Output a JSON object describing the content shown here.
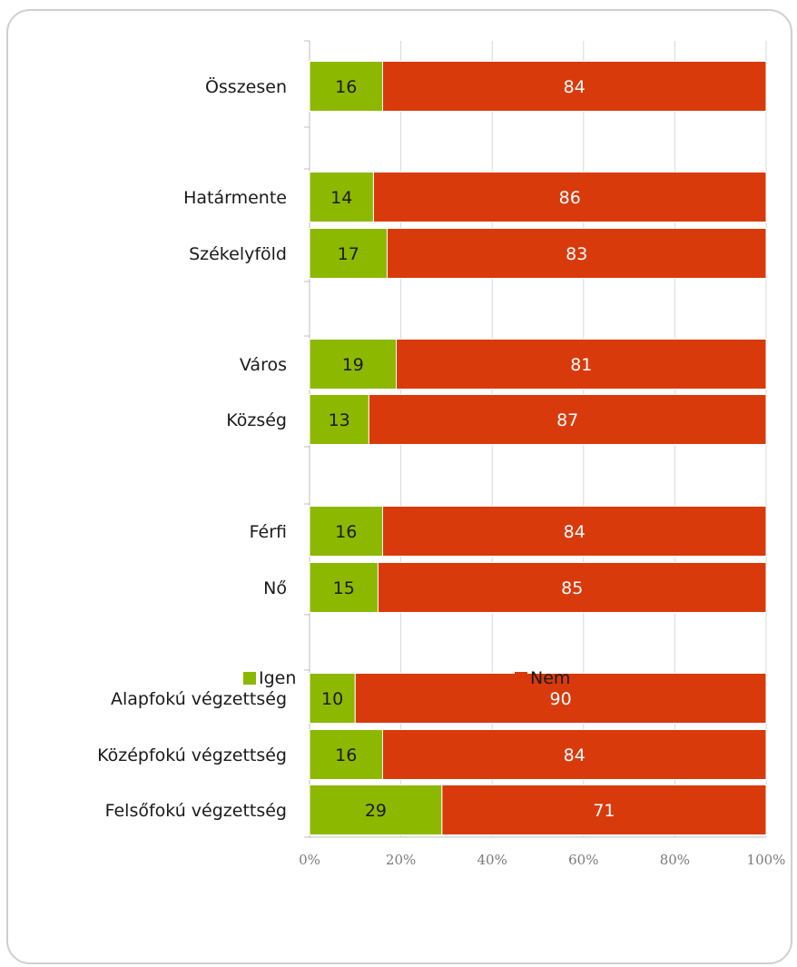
{
  "chart_data": {
    "type": "bar",
    "orientation": "horizontal",
    "stacked": true,
    "categories": [
      "Összesen",
      "Határmente",
      "Székelyföld",
      "Város",
      "Község",
      "Férfi",
      "Nő",
      "Alapfokú végzettség",
      "Középfokú végzettség",
      "Felsőfokú végzettség"
    ],
    "series": [
      {
        "name": "Igen",
        "color": "#8db800",
        "label_color": "#1a1a1a",
        "values": [
          16,
          14,
          17,
          19,
          13,
          16,
          15,
          10,
          16,
          29
        ]
      },
      {
        "name": "Nem",
        "color": "#d93a0c",
        "label_color": "#ffffff",
        "values": [
          84,
          86,
          83,
          81,
          87,
          84,
          85,
          90,
          84,
          71
        ]
      }
    ],
    "x_ticks": [
      "0%",
      "20%",
      "40%",
      "60%",
      "80%",
      "100%"
    ],
    "xlim": [
      0,
      100
    ],
    "grid": true,
    "legend_position": "bottom",
    "title": "",
    "xlabel": "",
    "ylabel": ""
  }
}
